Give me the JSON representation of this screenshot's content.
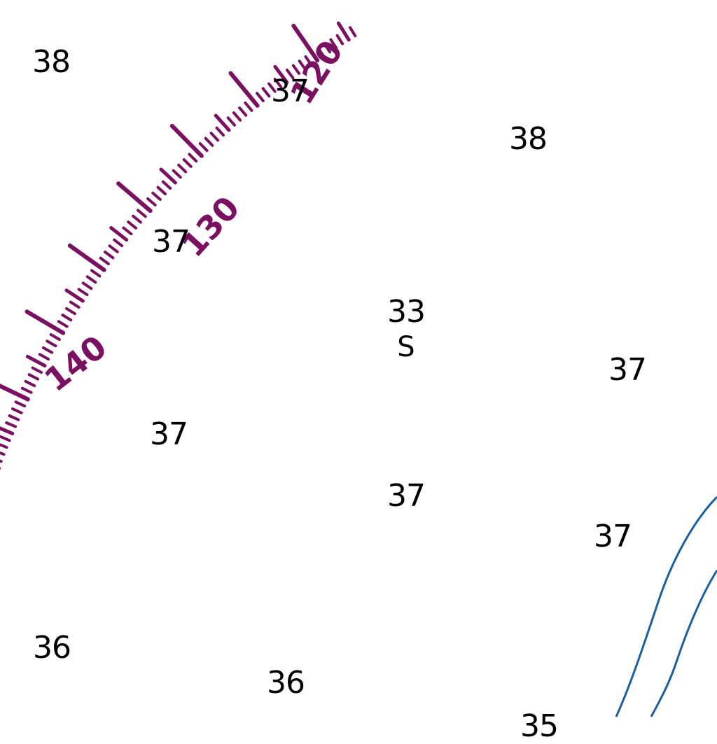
{
  "chart": {
    "soundings": [
      {
        "id": "s1",
        "value": "38"
      },
      {
        "id": "s2",
        "value": "37"
      },
      {
        "id": "s3",
        "value": "38"
      },
      {
        "id": "s4",
        "value": "37"
      },
      {
        "id": "s5",
        "value": "33"
      },
      {
        "id": "s6",
        "value": "37"
      },
      {
        "id": "s7",
        "value": "37"
      },
      {
        "id": "s8",
        "value": "37"
      },
      {
        "id": "s9",
        "value": "37"
      },
      {
        "id": "s10",
        "value": "36"
      },
      {
        "id": "s11",
        "value": "36"
      },
      {
        "id": "s12",
        "value": "35"
      }
    ],
    "bottom_quality": "S",
    "compass_rose": {
      "labels": [
        "120",
        "130",
        "140"
      ],
      "color": "#7a1060"
    },
    "depth_contour_color": "#1a5fa0"
  }
}
